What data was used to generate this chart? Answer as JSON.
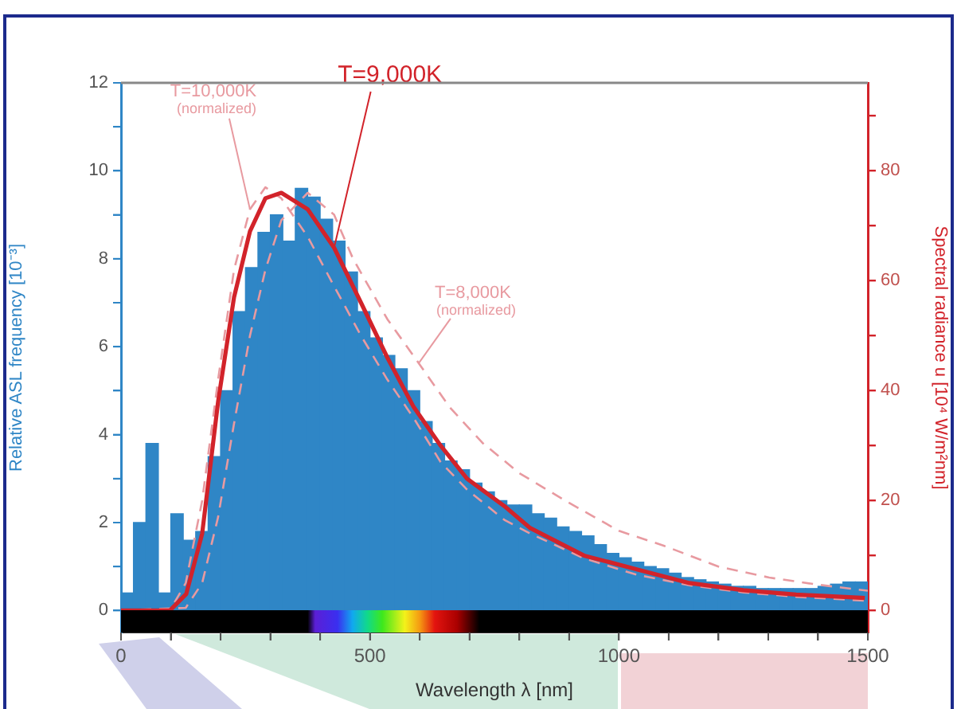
{
  "chart_data": {
    "type": "histogram",
    "xlabel": "Wavelength λ [nm]",
    "ylabel": "Relative ASL frequency [10⁻³]",
    "y2label": "Spectral radiance u [10⁴ W/m²nm]",
    "xlim": [
      0,
      1500
    ],
    "xticks": [
      0,
      {
        "value": 100,
        "label": null
      },
      {
        "value": 200,
        "label": null
      },
      {
        "value": 300,
        "label": null
      },
      {
        "value": 400,
        "label": null
      },
      500,
      {
        "value": 600,
        "label": null
      },
      {
        "value": 700,
        "label": null
      },
      {
        "value": 800,
        "label": null
      },
      {
        "value": 900,
        "label": null
      },
      1000,
      {
        "value": 1100,
        "label": null
      },
      {
        "value": 1200,
        "label": null
      },
      {
        "value": 1300,
        "label": null
      },
      {
        "value": 1400,
        "label": null
      },
      1500
    ],
    "ylim": [
      -0.5,
      12
    ],
    "yticks": [
      0,
      {
        "value": 1,
        "label": null
      },
      2,
      {
        "value": 3,
        "label": null
      },
      4,
      {
        "value": 5,
        "label": null
      },
      6,
      {
        "value": 7,
        "label": null
      },
      8,
      {
        "value": 9,
        "label": null
      },
      10,
      {
        "value": 11,
        "label": null
      },
      12
    ],
    "y2lim": [
      -4,
      96
    ],
    "y2ticks": [
      0,
      {
        "value": 10,
        "label": null
      },
      20,
      {
        "value": 30,
        "label": null
      },
      40,
      {
        "value": 50,
        "label": null
      },
      60,
      {
        "value": 70,
        "label": null
      },
      80,
      {
        "value": 90,
        "label": null
      }
    ],
    "grid": false,
    "legend": false,
    "marker": "none",
    "series": [
      {
        "color": "#2f86c6",
        "bins": [
          0,
          25,
          50,
          75,
          100,
          125,
          150,
          175,
          200,
          225,
          250,
          275,
          300,
          325,
          350,
          375,
          400,
          425,
          450,
          475,
          500,
          525,
          550,
          575,
          600,
          625,
          650,
          675,
          700,
          725,
          750,
          775,
          800,
          825,
          850,
          875,
          900,
          925,
          950,
          975,
          1000,
          1025,
          1050,
          1075,
          1100,
          1125,
          1150,
          1175,
          1200,
          1225,
          1250,
          1275,
          1300,
          1325,
          1350,
          1375,
          1400,
          1425,
          1450,
          1475,
          1500
        ],
        "values": [
          0.4,
          2.0,
          3.8,
          0.4,
          2.2,
          1.6,
          1.8,
          3.5,
          5.0,
          6.8,
          7.8,
          8.6,
          9.0,
          8.4,
          9.6,
          9.4,
          8.9,
          8.4,
          7.7,
          6.8,
          6.2,
          5.8,
          5.5,
          5.0,
          4.3,
          3.8,
          3.4,
          3.2,
          2.9,
          2.7,
          2.5,
          2.4,
          2.4,
          2.2,
          2.1,
          1.9,
          1.8,
          1.7,
          1.5,
          1.3,
          1.2,
          1.1,
          1.0,
          0.95,
          0.85,
          0.75,
          0.7,
          0.65,
          0.6,
          0.55,
          0.55,
          0.5,
          0.5,
          0.5,
          0.5,
          0.5,
          0.55,
          0.6,
          0.65,
          0.65
        ]
      },
      {
        "type": "line",
        "name": "T=9,000K",
        "axis": "y2",
        "color": "#d2232a",
        "line_style": "solid",
        "x": [
          0,
          98,
          131,
          163,
          195,
          227,
          259,
          290,
          322,
          375,
          428,
          482,
          535,
          588,
          642,
          695,
          770,
          822,
          930,
          1036,
          1142,
          1250,
          1356,
          1494
        ],
        "values": [
          0,
          0,
          3,
          14,
          38,
          57,
          69,
          75,
          76,
          73,
          66,
          56,
          46,
          37,
          30,
          24,
          19,
          15,
          10,
          7.5,
          5,
          3.7,
          2.9,
          2.3
        ]
      },
      {
        "type": "line",
        "name": "T=10,000K (normalized)",
        "axis": "y2",
        "color": "#e89aa0",
        "line_style": "dashed",
        "x": [
          0,
          100,
          130,
          163,
          195,
          227,
          259,
          290,
          322,
          375,
          428,
          482,
          535,
          588,
          642,
          695,
          770,
          822,
          930,
          1036,
          1142,
          1250,
          1356,
          1494
        ],
        "values": [
          0,
          0.3,
          5,
          20,
          42,
          62,
          73,
          77,
          75,
          68,
          59,
          50,
          42,
          35,
          27,
          22,
          16.5,
          14,
          9.5,
          6.5,
          4.6,
          3.3,
          2.5,
          1.8
        ]
      },
      {
        "type": "line",
        "name": "T=8,000K (normalized)",
        "axis": "y2",
        "color": "#e89aa0",
        "line_style": "dashed",
        "x": [
          0,
          130,
          163,
          195,
          227,
          259,
          290,
          322,
          375,
          428,
          466,
          535,
          598,
          660,
          726,
          800,
          892,
          1000,
          1090,
          1200,
          1302,
          1400,
          1500
        ],
        "values": [
          0,
          0.5,
          5,
          17,
          34,
          50,
          62,
          71,
          76,
          72,
          64,
          53,
          45,
          37,
          30.5,
          25,
          20,
          14.5,
          11.8,
          8,
          6,
          4.7,
          3.6
        ]
      }
    ]
  }
}
